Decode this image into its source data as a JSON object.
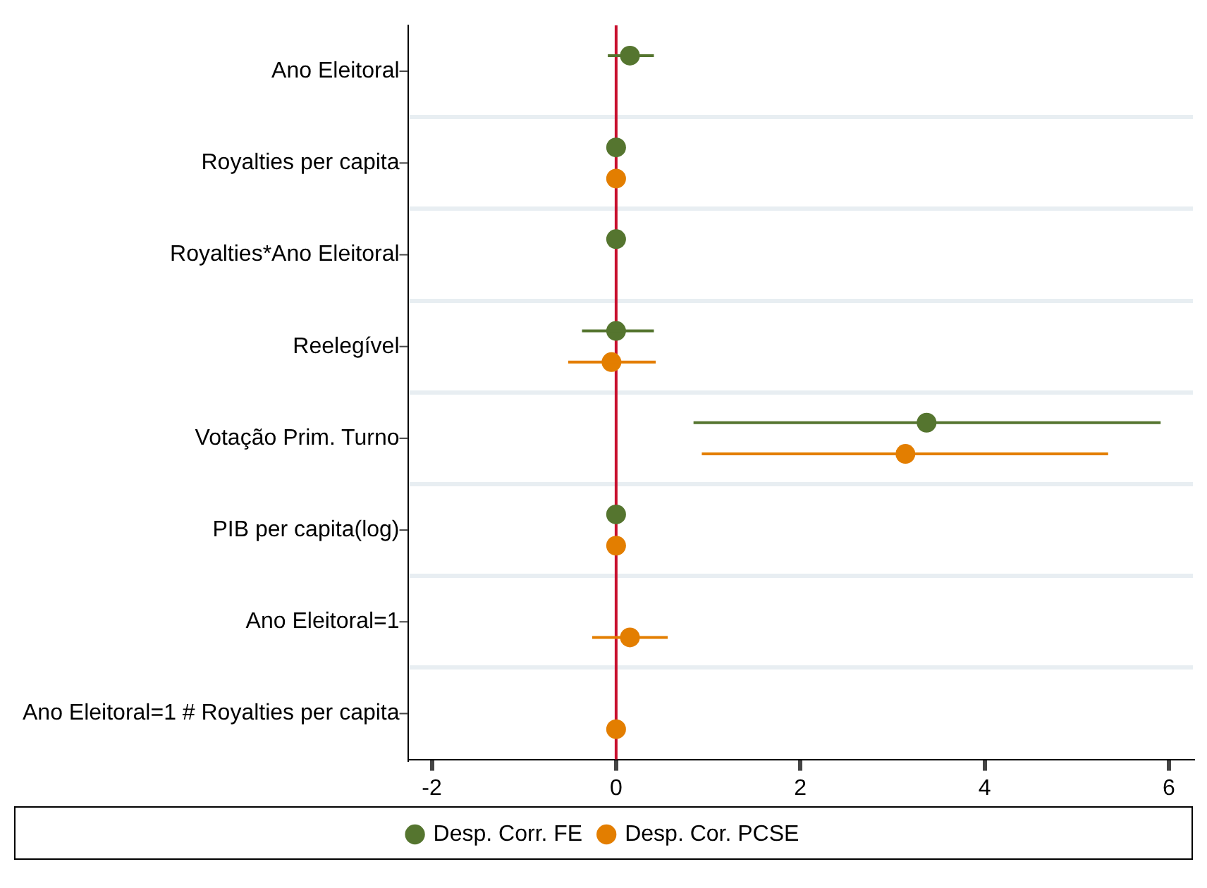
{
  "chart_data": {
    "type": "scatter",
    "orientation": "horizontal",
    "categories": [
      "Ano Eleitoral",
      "Royalties per capita",
      "Royalties*Ano Eleitoral",
      "Reelegível",
      "Votação Prim. Turno",
      "PIB per capita(log)",
      "Ano Eleitoral=1",
      "Ano Eleitoral=1 # Royalties per capita"
    ],
    "series": [
      {
        "name": "Desp. Corr. FE",
        "color": "#55752f",
        "values": [
          0.15,
          0,
          0,
          0,
          3.37,
          0,
          null,
          null
        ],
        "errors": [
          [
            -0.09,
            0.41
          ],
          null,
          null,
          [
            -0.37,
            0.41
          ],
          [
            0.84,
            5.91
          ],
          null,
          null,
          null
        ]
      },
      {
        "name": "Desp. Cor. PCSE",
        "color": "#e37e00",
        "values": [
          null,
          0,
          null,
          -0.05,
          3.14,
          0,
          0.15,
          0
        ],
        "errors": [
          null,
          null,
          null,
          [
            -0.52,
            0.43
          ],
          [
            0.93,
            5.34
          ],
          null,
          [
            -0.26,
            0.56
          ],
          null
        ]
      }
    ],
    "xlim": [
      -2.26,
      6.26
    ],
    "xticks": [
      -2,
      0,
      2,
      4,
      6
    ],
    "ref_lines": [
      {
        "axis": "x",
        "value": 0,
        "color": "#c8102e"
      }
    ],
    "grid": "y",
    "legend": "bottom",
    "marker": "circle"
  }
}
